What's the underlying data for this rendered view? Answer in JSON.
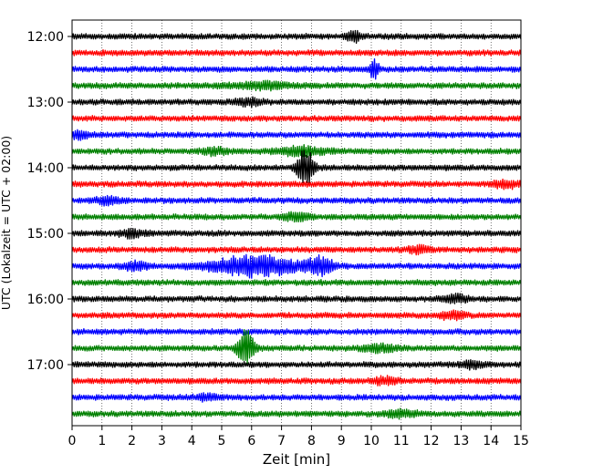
{
  "chart_data": {
    "type": "line",
    "title": "",
    "xlabel": "Zeit  [min]",
    "ylabel": "UTC (Lokalzeit = UTC + 02:00)",
    "xlim": [
      0,
      15
    ],
    "x_ticks": [
      0,
      1,
      2,
      3,
      4,
      5,
      6,
      7,
      8,
      9,
      10,
      11,
      12,
      13,
      14,
      15
    ],
    "y_tick_labels": [
      "12:00",
      "13:00",
      "14:00",
      "15:00",
      "16:00",
      "17:00"
    ],
    "traces_per_hour": 4,
    "minutes_per_trace": 15,
    "grid": "vertical dotted at every minute",
    "trace_colors": [
      "#000000",
      "#ff0000",
      "#0000ff",
      "#008000"
    ],
    "traces": [
      {
        "start": "12:00",
        "events": [
          {
            "t": 9.4,
            "amp": 0.5,
            "w": 0.15
          }
        ]
      },
      {
        "start": "12:15",
        "events": []
      },
      {
        "start": "12:30",
        "events": [
          {
            "t": 10.1,
            "amp": 0.8,
            "w": 0.12
          }
        ]
      },
      {
        "start": "12:45",
        "events": [
          {
            "t": 6.3,
            "amp": 0.25,
            "w": 0.8
          }
        ]
      },
      {
        "start": "13:00",
        "events": [
          {
            "t": 5.9,
            "amp": 0.3,
            "w": 0.3
          }
        ]
      },
      {
        "start": "13:15",
        "events": []
      },
      {
        "start": "13:30",
        "events": [
          {
            "t": 0.2,
            "amp": 0.3,
            "w": 0.3
          }
        ]
      },
      {
        "start": "13:45",
        "events": [
          {
            "t": 7.6,
            "amp": 0.35,
            "w": 0.6
          },
          {
            "t": 4.8,
            "amp": 0.25,
            "w": 0.3
          }
        ]
      },
      {
        "start": "14:00",
        "events": [
          {
            "t": 7.8,
            "amp": 1.6,
            "w": 0.2
          }
        ]
      },
      {
        "start": "14:15",
        "events": [
          {
            "t": 14.5,
            "amp": 0.3,
            "w": 0.3
          }
        ]
      },
      {
        "start": "14:30",
        "events": [
          {
            "t": 1.2,
            "amp": 0.3,
            "w": 0.3
          }
        ]
      },
      {
        "start": "14:45",
        "events": [
          {
            "t": 7.5,
            "amp": 0.3,
            "w": 0.3
          }
        ]
      },
      {
        "start": "15:00",
        "events": [
          {
            "t": 2.0,
            "amp": 0.3,
            "w": 0.3
          }
        ]
      },
      {
        "start": "15:15",
        "events": [
          {
            "t": 11.6,
            "amp": 0.25,
            "w": 0.3
          }
        ]
      },
      {
        "start": "15:30",
        "events": [
          {
            "t": 6.1,
            "amp": 0.9,
            "w": 1.0
          },
          {
            "t": 8.3,
            "amp": 0.7,
            "w": 0.3
          },
          {
            "t": 2.1,
            "amp": 0.35,
            "w": 0.3
          }
        ]
      },
      {
        "start": "15:45",
        "events": []
      },
      {
        "start": "16:00",
        "events": [
          {
            "t": 12.8,
            "amp": 0.3,
            "w": 0.3
          }
        ]
      },
      {
        "start": "16:15",
        "events": [
          {
            "t": 12.7,
            "amp": 0.3,
            "w": 0.3
          }
        ]
      },
      {
        "start": "16:30",
        "events": []
      },
      {
        "start": "16:45",
        "events": [
          {
            "t": 5.8,
            "amp": 1.7,
            "w": 0.18
          },
          {
            "t": 10.2,
            "amp": 0.3,
            "w": 0.4
          }
        ]
      },
      {
        "start": "17:00",
        "events": [
          {
            "t": 13.4,
            "amp": 0.3,
            "w": 0.3
          }
        ]
      },
      {
        "start": "17:15",
        "events": [
          {
            "t": 10.5,
            "amp": 0.3,
            "w": 0.3
          }
        ]
      },
      {
        "start": "17:30",
        "events": [
          {
            "t": 4.5,
            "amp": 0.25,
            "w": 0.3
          }
        ]
      },
      {
        "start": "17:45",
        "events": [
          {
            "t": 11.0,
            "amp": 0.25,
            "w": 0.4
          }
        ]
      }
    ]
  }
}
